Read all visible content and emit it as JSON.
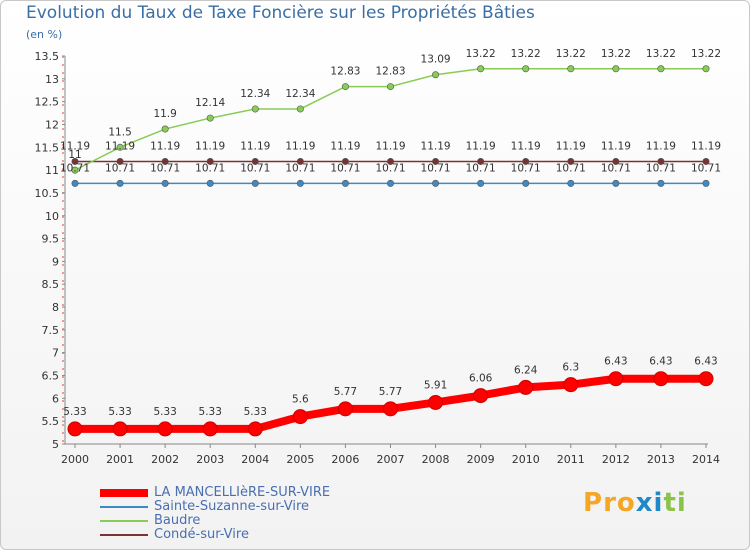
{
  "header": {
    "title": "Evolution du Taux de Taxe Foncière sur les Propriétés Bâties",
    "unit": "(en %)"
  },
  "logo": {
    "text": "Proxiti",
    "colors": [
      "#f5a623",
      "#f5a623",
      "#f5a623",
      "#1e88c8",
      "#1e88c8",
      "#8bc34a",
      "#8bc34a"
    ]
  },
  "chart_data": {
    "type": "line",
    "title": "Evolution du Taux de Taxe Foncière sur les Propriétés Bâties",
    "ylabel": "(en %)",
    "xlabel": "",
    "x": [
      "2000",
      "2001",
      "2002",
      "2003",
      "2004",
      "2005",
      "2006",
      "2007",
      "2008",
      "2009",
      "2010",
      "2011",
      "2012",
      "2013",
      "2014"
    ],
    "ylim": [
      5,
      13.5
    ],
    "yticks": [
      "5",
      "5.5",
      "6",
      "6.5",
      "7",
      "7.5",
      "8",
      "8.5",
      "9",
      "9.5",
      "10",
      "10.5",
      "11",
      "11.5",
      "12",
      "12.5",
      "13",
      "13.5"
    ],
    "grid": false,
    "legend_position": "bottom-left",
    "series": [
      {
        "name": "LA MANCELLIèRE-SUR-VIRE",
        "color": "#ff0000",
        "values": [
          5.33,
          5.33,
          5.33,
          5.33,
          5.33,
          5.6,
          5.77,
          5.77,
          5.91,
          6.06,
          6.24,
          6.3,
          6.43,
          6.43,
          6.43
        ],
        "labels": [
          "5.33",
          "5.33",
          "5.33",
          "5.33",
          "5.33",
          "5.6",
          "5.77",
          "5.77",
          "5.91",
          "6.06",
          "6.24",
          "6.3",
          "6.43",
          "6.43",
          "6.43"
        ]
      },
      {
        "name": "Sainte-Suzanne-sur-Vire",
        "color": "#3d8ac6",
        "values": [
          10.71,
          10.71,
          10.71,
          10.71,
          10.71,
          10.71,
          10.71,
          10.71,
          10.71,
          10.71,
          10.71,
          10.71,
          10.71,
          10.71,
          10.71
        ],
        "labels": [
          "10.71",
          "10.71",
          "10.71",
          "10.71",
          "10.71",
          "10.71",
          "10.71",
          "10.71",
          "10.71",
          "10.71",
          "10.71",
          "10.71",
          "10.71",
          "10.71",
          "10.71"
        ]
      },
      {
        "name": "Baudre",
        "color": "#88cc55",
        "values": [
          11,
          11.5,
          11.9,
          12.14,
          12.34,
          12.34,
          12.83,
          12.83,
          13.09,
          13.22,
          13.22,
          13.22,
          13.22,
          13.22,
          13.22
        ],
        "labels": [
          "11",
          "11.5",
          "11.9",
          "12.14",
          "12.34",
          "12.34",
          "12.83",
          "12.83",
          "13.09",
          "13.22",
          "13.22",
          "13.22",
          "13.22",
          "13.22",
          "13.22"
        ]
      },
      {
        "name": "Condé-sur-Vire",
        "color": "#7a3232",
        "values": [
          11.19,
          11.19,
          11.19,
          11.19,
          11.19,
          11.19,
          11.19,
          11.19,
          11.19,
          11.19,
          11.19,
          11.19,
          11.19,
          11.19,
          11.19
        ],
        "labels": [
          "11.19",
          "11.19",
          "11.19",
          "11.19",
          "11.19",
          "11.19",
          "11.19",
          "11.19",
          "11.19",
          "11.19",
          "11.19",
          "11.19",
          "11.19",
          "11.19",
          "11.19"
        ]
      }
    ]
  }
}
